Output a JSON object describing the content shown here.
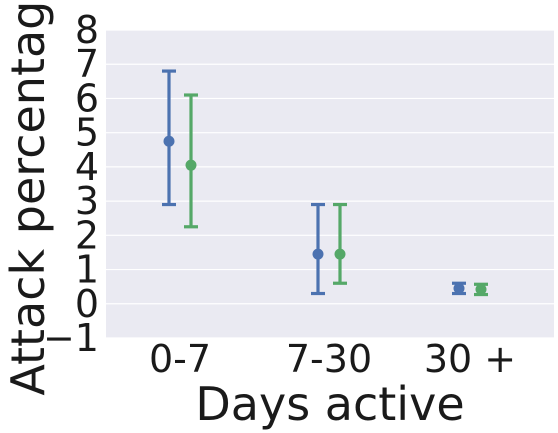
{
  "chart_data": {
    "type": "scatter",
    "xlabel": "Days active",
    "ylabel": "Attack percentage",
    "categories": [
      "0-7",
      "7-30",
      "30 +"
    ],
    "ylim": [
      -1,
      8
    ],
    "yticks": [
      "-1",
      "0",
      "1",
      "2",
      "3",
      "4",
      "5",
      "6",
      "7",
      "8"
    ],
    "grid": true,
    "background": "#eaeaf2",
    "series": [
      {
        "color": "#4c72b0",
        "values": [
          4.75,
          1.45,
          0.45
        ],
        "lower": [
          2.9,
          0.3,
          0.3
        ],
        "upper": [
          6.8,
          2.9,
          0.6
        ]
      },
      {
        "color": "#55a868",
        "values": [
          4.05,
          1.45,
          0.42
        ],
        "lower": [
          2.25,
          0.6,
          0.27
        ],
        "upper": [
          6.1,
          2.9,
          0.57
        ]
      }
    ]
  }
}
